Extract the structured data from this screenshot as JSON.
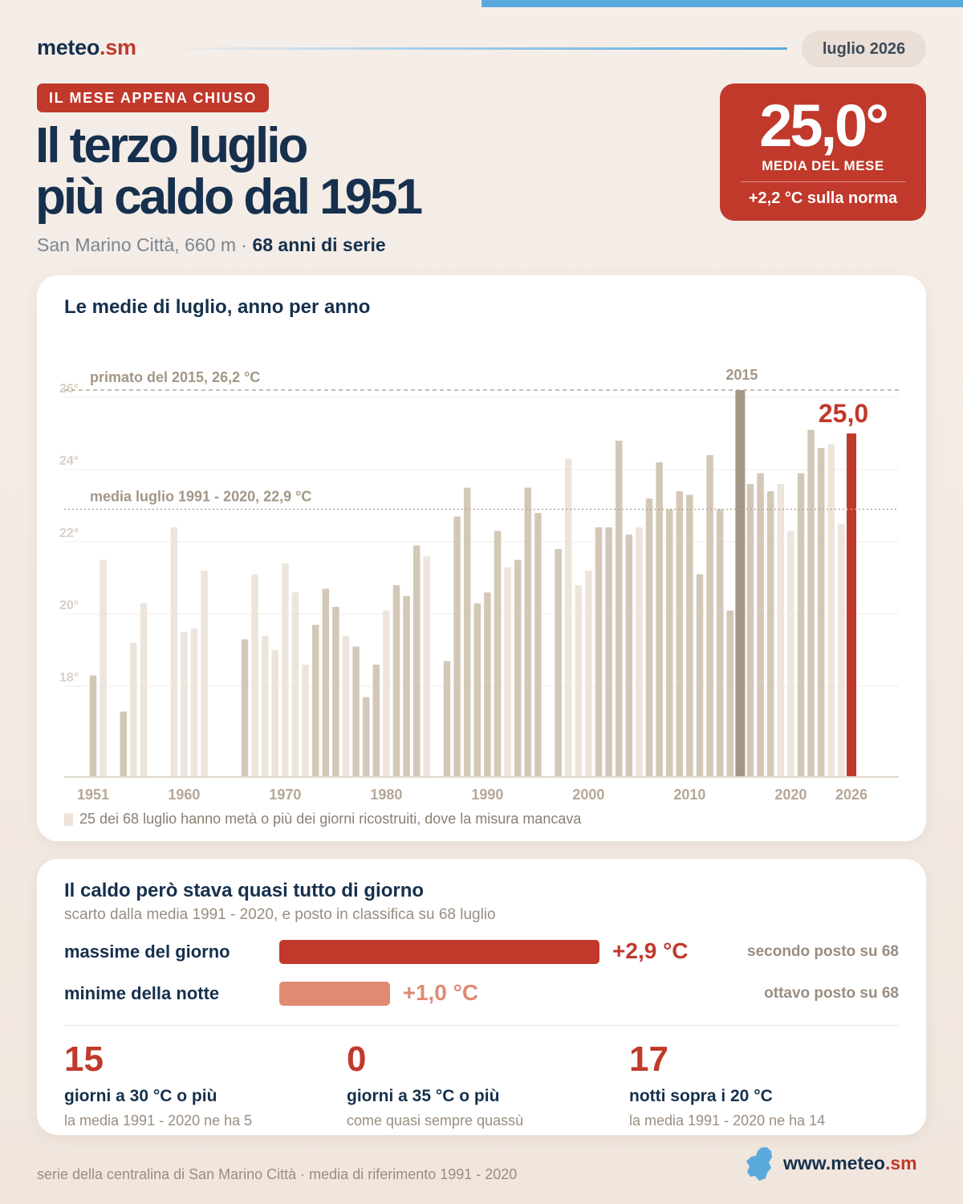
{
  "brand": {
    "name": "meteo",
    "suffix": ".sm"
  },
  "period": "luglio 2026",
  "kicker": "IL MESE APPENA CHIUSO",
  "headline": {
    "line1": "Il terzo luglio",
    "line2": "più caldo dal 1951"
  },
  "subtitle": {
    "place": "San Marino Città, 660 m ·",
    "series": "68 anni di serie"
  },
  "summary": {
    "value": "25,0°",
    "caption": "MEDIA DEL MESE",
    "anomaly": "+2,2 °C sulla norma"
  },
  "chart_title": "Le medie di luglio, anno per anno",
  "chart_data": {
    "type": "bar",
    "title": "Le medie di luglio, anno per anno",
    "xlabel": "",
    "ylabel": "",
    "ylim": [
      16,
      26.5
    ],
    "y_ticks": [
      18,
      20,
      22,
      24,
      26
    ],
    "y_tick_labels": [
      "18°",
      "20°",
      "22°",
      "24°",
      "26°"
    ],
    "x_tick_labels": [
      "1951",
      "1960",
      "1970",
      "1980",
      "1990",
      "2000",
      "2010",
      "2020",
      "2026"
    ],
    "colors": {
      "measured": "#d3c8b7",
      "reconstructed": "#ede5dc",
      "record": "#a39686",
      "current": "#c0392b"
    },
    "values": [
      {
        "year": 1951,
        "value": 18.3,
        "kind": "measured"
      },
      {
        "year": 1952,
        "value": 21.5,
        "kind": "reconstructed"
      },
      {
        "year": 1954,
        "value": 17.3,
        "kind": "measured"
      },
      {
        "year": 1955,
        "value": 19.2,
        "kind": "reconstructed"
      },
      {
        "year": 1956,
        "value": 20.3,
        "kind": "reconstructed"
      },
      {
        "year": 1959,
        "value": 22.4,
        "kind": "reconstructed"
      },
      {
        "year": 1960,
        "value": 19.5,
        "kind": "reconstructed"
      },
      {
        "year": 1961,
        "value": 19.6,
        "kind": "reconstructed"
      },
      {
        "year": 1962,
        "value": 21.2,
        "kind": "reconstructed"
      },
      {
        "year": 1966,
        "value": 19.3,
        "kind": "measured"
      },
      {
        "year": 1967,
        "value": 21.1,
        "kind": "reconstructed"
      },
      {
        "year": 1968,
        "value": 19.4,
        "kind": "reconstructed"
      },
      {
        "year": 1969,
        "value": 19.0,
        "kind": "reconstructed"
      },
      {
        "year": 1970,
        "value": 21.4,
        "kind": "reconstructed"
      },
      {
        "year": 1971,
        "value": 20.6,
        "kind": "reconstructed"
      },
      {
        "year": 1972,
        "value": 18.6,
        "kind": "reconstructed"
      },
      {
        "year": 1973,
        "value": 19.7,
        "kind": "measured"
      },
      {
        "year": 1974,
        "value": 20.7,
        "kind": "measured"
      },
      {
        "year": 1975,
        "value": 20.2,
        "kind": "measured"
      },
      {
        "year": 1976,
        "value": 19.4,
        "kind": "reconstructed"
      },
      {
        "year": 1977,
        "value": 19.1,
        "kind": "measured"
      },
      {
        "year": 1978,
        "value": 17.7,
        "kind": "measured"
      },
      {
        "year": 1979,
        "value": 18.6,
        "kind": "measured"
      },
      {
        "year": 1980,
        "value": 20.1,
        "kind": "reconstructed"
      },
      {
        "year": 1981,
        "value": 20.8,
        "kind": "measured"
      },
      {
        "year": 1982,
        "value": 20.5,
        "kind": "measured"
      },
      {
        "year": 1983,
        "value": 21.9,
        "kind": "measured"
      },
      {
        "year": 1984,
        "value": 21.6,
        "kind": "reconstructed"
      },
      {
        "year": 1986,
        "value": 18.7,
        "kind": "measured"
      },
      {
        "year": 1987,
        "value": 22.7,
        "kind": "measured"
      },
      {
        "year": 1988,
        "value": 23.5,
        "kind": "measured"
      },
      {
        "year": 1989,
        "value": 20.3,
        "kind": "measured"
      },
      {
        "year": 1990,
        "value": 20.6,
        "kind": "measured"
      },
      {
        "year": 1991,
        "value": 22.3,
        "kind": "measured"
      },
      {
        "year": 1992,
        "value": 21.3,
        "kind": "reconstructed"
      },
      {
        "year": 1993,
        "value": 21.5,
        "kind": "measured"
      },
      {
        "year": 1994,
        "value": 23.5,
        "kind": "measured"
      },
      {
        "year": 1995,
        "value": 22.8,
        "kind": "measured"
      },
      {
        "year": 1997,
        "value": 21.8,
        "kind": "measured"
      },
      {
        "year": 1998,
        "value": 24.3,
        "kind": "reconstructed"
      },
      {
        "year": 1999,
        "value": 20.8,
        "kind": "reconstructed"
      },
      {
        "year": 2000,
        "value": 21.2,
        "kind": "reconstructed"
      },
      {
        "year": 2001,
        "value": 22.4,
        "kind": "measured"
      },
      {
        "year": 2002,
        "value": 22.4,
        "kind": "measured"
      },
      {
        "year": 2003,
        "value": 24.8,
        "kind": "measured"
      },
      {
        "year": 2004,
        "value": 22.2,
        "kind": "measured"
      },
      {
        "year": 2005,
        "value": 22.4,
        "kind": "reconstructed"
      },
      {
        "year": 2006,
        "value": 23.2,
        "kind": "measured"
      },
      {
        "year": 2007,
        "value": 24.2,
        "kind": "measured"
      },
      {
        "year": 2008,
        "value": 22.9,
        "kind": "measured"
      },
      {
        "year": 2009,
        "value": 23.4,
        "kind": "measured"
      },
      {
        "year": 2010,
        "value": 23.3,
        "kind": "measured"
      },
      {
        "year": 2011,
        "value": 21.1,
        "kind": "measured"
      },
      {
        "year": 2012,
        "value": 24.4,
        "kind": "measured"
      },
      {
        "year": 2013,
        "value": 22.9,
        "kind": "measured"
      },
      {
        "year": 2014,
        "value": 20.1,
        "kind": "measured"
      },
      {
        "year": 2015,
        "value": 26.2,
        "kind": "record"
      },
      {
        "year": 2016,
        "value": 23.6,
        "kind": "measured"
      },
      {
        "year": 2017,
        "value": 23.9,
        "kind": "measured"
      },
      {
        "year": 2018,
        "value": 23.4,
        "kind": "measured"
      },
      {
        "year": 2019,
        "value": 23.6,
        "kind": "reconstructed"
      },
      {
        "year": 2020,
        "value": 22.3,
        "kind": "reconstructed"
      },
      {
        "year": 2021,
        "value": 23.9,
        "kind": "measured"
      },
      {
        "year": 2022,
        "value": 25.1,
        "kind": "measured"
      },
      {
        "year": 2023,
        "value": 24.6,
        "kind": "measured"
      },
      {
        "year": 2024,
        "value": 24.7,
        "kind": "reconstructed"
      },
      {
        "year": 2025,
        "value": 22.5,
        "kind": "reconstructed"
      },
      {
        "year": 2026,
        "value": 25.0,
        "kind": "current"
      }
    ],
    "reference_lines": [
      {
        "value": 26.2,
        "label": "primato del 2015, 26,2 °C",
        "style": "dashed"
      },
      {
        "value": 22.9,
        "label": "media luglio 1991 - 2020, 22,9 °C",
        "style": "dotted"
      }
    ],
    "annotations": [
      {
        "year": 2015,
        "text": "2015"
      },
      {
        "year": 2026,
        "text": "25,0"
      }
    ],
    "grid": true,
    "legend": "bottom-left"
  },
  "chart_note": "25 dei 68 luglio hanno metà o più dei giorni ricostruiti, dove la misura mancava",
  "anomalies": {
    "title": "Il caldo però stava quasi tutto di giorno",
    "subtitle": "scarto dalla media 1991 - 2020, e posto in classifica su 68 luglio",
    "rows": [
      {
        "label": "massime del giorno",
        "delta": 2.9,
        "delta_text": "+2,9 °C",
        "rank": "secondo posto su 68",
        "color": "#c0392b"
      },
      {
        "label": "minime della notte",
        "delta": 1.0,
        "delta_text": "+1,0 °C",
        "rank": "ottavo posto su 68",
        "color": "#e08a72"
      }
    ]
  },
  "stats": [
    {
      "number": "15",
      "label": "giorni a 30 °C o più",
      "comparison": "la media 1991 - 2020 ne ha 5"
    },
    {
      "number": "0",
      "label": "giorni a 35 °C o più",
      "comparison": "come quasi sempre quassù"
    },
    {
      "number": "17",
      "label": "notti sopra i 20 °C",
      "comparison": "la media 1991 - 2020 ne ha 14"
    }
  ],
  "footer": {
    "source": "serie della centralina di San Marino Città · media di riferimento 1991 - 2020",
    "url_prefix": "www.meteo",
    "url_suffix": ".sm"
  }
}
